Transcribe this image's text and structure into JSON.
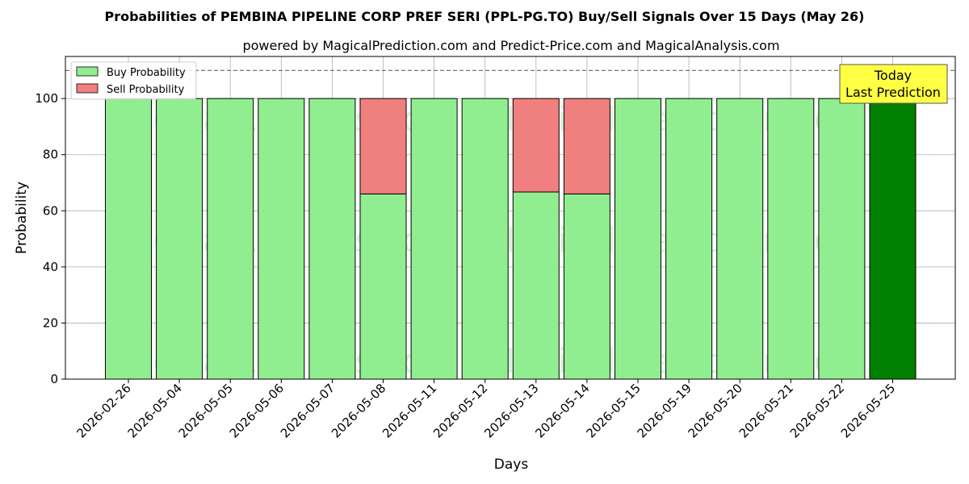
{
  "chart_data": {
    "type": "bar",
    "stacked": true,
    "title": "Probabilities of PEMBINA PIPELINE CORP PREF SERI (PPL-PG.TO) Buy/Sell Signals Over 15 Days (May 26)",
    "subtitle": "powered by MagicalPrediction.com and Predict-Price.com and MagicalAnalysis.com",
    "xlabel": "Days",
    "ylabel": "Probability",
    "ylim": [
      0,
      115
    ],
    "yticks": [
      0,
      20,
      40,
      60,
      80,
      100
    ],
    "reference_line": 110,
    "grid": true,
    "legend_position": "top-left",
    "categories": [
      "2026-02-26",
      "2026-05-04",
      "2026-05-05",
      "2026-05-06",
      "2026-05-07",
      "2026-05-08",
      "2026-05-11",
      "2026-05-12",
      "2026-05-13",
      "2026-05-14",
      "2026-05-15",
      "2026-05-19",
      "2026-05-20",
      "2026-05-21",
      "2026-05-22",
      "2026-05-25"
    ],
    "series": [
      {
        "name": "Buy Probability",
        "color": "#90ee90",
        "values": [
          100,
          100,
          100,
          100,
          100,
          66,
          100,
          100,
          66.7,
          66,
          100,
          100,
          100,
          100,
          100,
          100
        ]
      },
      {
        "name": "Sell Probability",
        "color": "#f08080",
        "values": [
          0,
          0,
          0,
          0,
          0,
          34,
          0,
          0,
          33.3,
          34,
          0,
          0,
          0,
          0,
          0,
          0
        ]
      }
    ],
    "highlight": {
      "index": 15,
      "color": "#008000"
    },
    "annotation": {
      "line1": "Today",
      "line2": "Last Prediction",
      "background": "#ffff44"
    },
    "watermarks": [
      "MagicalAnalysis.com",
      "MagicalPrediction.com"
    ]
  }
}
